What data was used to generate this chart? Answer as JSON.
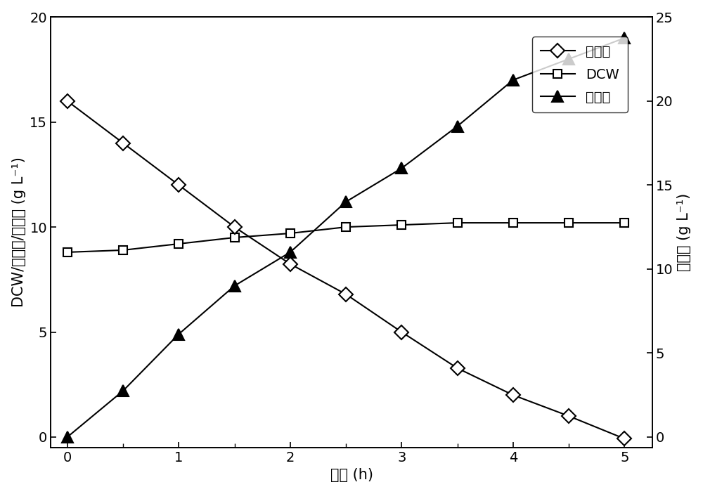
{
  "xlabel": "时间 (h)",
  "ylabel_left": "DCW/富马酸/苹果酸 (g L⁻¹)",
  "ylabel_right": "丁二酸 (g L⁻¹)",
  "x_ticks": [
    0,
    1,
    2,
    3,
    4,
    5
  ],
  "x_minor_ticks": [
    0.5,
    1.5,
    2.5,
    3.5,
    4.5
  ],
  "xlim": [
    -0.15,
    5.25
  ],
  "ylim_left": [
    -0.5,
    20
  ],
  "ylim_right": [
    -0.625,
    25
  ],
  "y_ticks_left": [
    0,
    5,
    10,
    15,
    20
  ],
  "y_ticks_right": [
    0,
    5,
    10,
    15,
    20,
    25
  ],
  "succinic_acid": {
    "label": "丁二酸",
    "x": [
      0,
      0.5,
      1.0,
      1.5,
      2.0,
      2.5,
      3.0,
      3.5,
      4.0,
      4.5,
      5.0
    ],
    "y": [
      20.0,
      17.5,
      15.0,
      12.5,
      10.3,
      8.5,
      6.25,
      4.1,
      2.5,
      1.25,
      -0.1
    ]
  },
  "dcw": {
    "label": "DCW",
    "x": [
      0,
      0.5,
      1.0,
      1.5,
      2.0,
      2.5,
      3.0,
      3.5,
      4.0,
      4.5,
      5.0
    ],
    "y": [
      8.8,
      8.9,
      9.2,
      9.5,
      9.7,
      10.0,
      10.1,
      10.2,
      10.2,
      10.2,
      10.2
    ]
  },
  "fumaric_acid": {
    "label": "富马酸",
    "x": [
      0,
      0.5,
      1.0,
      1.5,
      2.0,
      2.5,
      3.0,
      3.5,
      4.0,
      4.5,
      5.0
    ],
    "y": [
      0.0,
      2.2,
      4.9,
      7.2,
      8.8,
      11.2,
      12.8,
      14.8,
      17.0,
      18.0,
      19.0
    ]
  },
  "fontsize": 15,
  "tick_fontsize": 14,
  "legend_fontsize": 14
}
